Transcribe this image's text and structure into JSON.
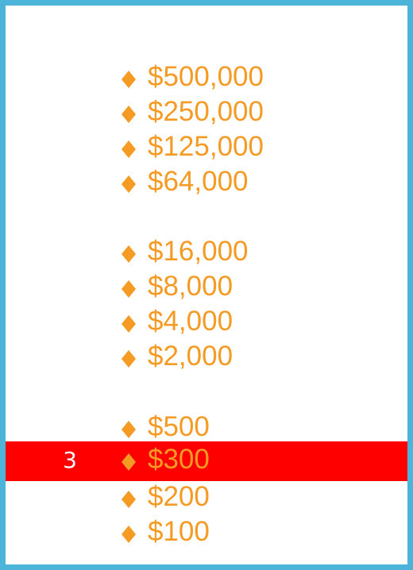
{
  "theme": {
    "border_color": "#4cb3d9",
    "amount_color": "#f59a23",
    "highlight_color": "#ff0000",
    "number_color": "#ffffff",
    "bullet_icon": "diamond-icon"
  },
  "ladder": {
    "rows": [
      {
        "amount": "$500,000",
        "number": "",
        "current": false
      },
      {
        "amount": "$250,000",
        "number": "",
        "current": false
      },
      {
        "amount": "$125,000",
        "number": "",
        "current": false
      },
      {
        "amount": "$64,000",
        "number": "",
        "current": false
      },
      {
        "amount": "$16,000",
        "number": "",
        "current": false
      },
      {
        "amount": "$8,000",
        "number": "",
        "current": false
      },
      {
        "amount": "$4,000",
        "number": "",
        "current": false
      },
      {
        "amount": "$2,000",
        "number": "",
        "current": false
      },
      {
        "amount": "$500",
        "number": "",
        "current": false
      },
      {
        "amount": "$300",
        "number": "3",
        "current": true
      },
      {
        "amount": "$200",
        "number": "",
        "current": false
      },
      {
        "amount": "$100",
        "number": "",
        "current": false
      }
    ]
  }
}
